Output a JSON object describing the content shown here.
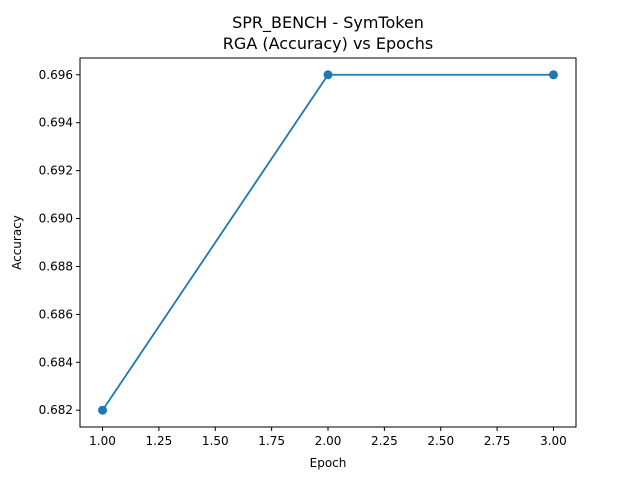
{
  "chart_data": {
    "type": "line",
    "title": "SPR_BENCH - SymToken",
    "subtitle": "RGA (Accuracy) vs Epochs",
    "xlabel": "Epoch",
    "ylabel": "Accuracy",
    "xlim": [
      0.9,
      3.1
    ],
    "ylim": [
      0.6813,
      0.6967
    ],
    "xticks": [
      "1.00",
      "1.25",
      "1.50",
      "1.75",
      "2.00",
      "2.25",
      "2.50",
      "2.75",
      "3.00"
    ],
    "yticks": [
      "0.682",
      "0.684",
      "0.686",
      "0.688",
      "0.690",
      "0.692",
      "0.694",
      "0.696"
    ],
    "grid": false,
    "series": [
      {
        "color": "#1f77b4",
        "marker": "circle",
        "x": [
          1,
          2,
          3
        ],
        "y": [
          0.682,
          0.696,
          0.696
        ]
      }
    ]
  }
}
